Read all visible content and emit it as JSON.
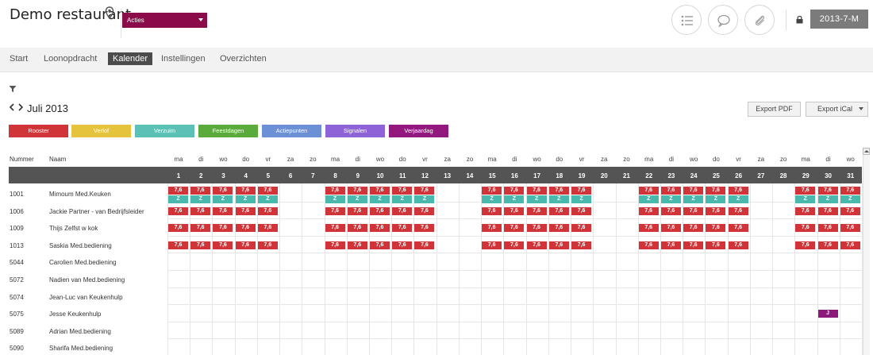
{
  "app": {
    "title": "Demo restaurant",
    "actions_label": "Acties",
    "user": "2013-7-M"
  },
  "header_icons": [
    "list-icon",
    "chat-icon",
    "paperclip-icon"
  ],
  "nav": {
    "items": [
      {
        "label": "Start",
        "active": false
      },
      {
        "label": "Loonopdracht",
        "active": false
      },
      {
        "label": "Kalender",
        "active": true
      },
      {
        "label": "Instellingen",
        "active": false
      },
      {
        "label": "Overzichten",
        "active": false
      }
    ]
  },
  "calendar": {
    "month": "Juli 2013",
    "export_pdf": "Export PDF",
    "export_ical": "Export iCal",
    "legend": [
      {
        "label": "Rooster",
        "color": "#d13438"
      },
      {
        "label": "Verlof",
        "color": "#e6c33d"
      },
      {
        "label": "Verzuim",
        "color": "#5bc0b5"
      },
      {
        "label": "Feestdagen",
        "color": "#5aab3b"
      },
      {
        "label": "Actiepunten",
        "color": "#6c8fd6"
      },
      {
        "label": "Signalen",
        "color": "#8f63d8"
      },
      {
        "label": "Verjaardag",
        "color": "#93197f"
      }
    ],
    "columns": {
      "number": "Nummer",
      "name": "Naam"
    },
    "day_names": [
      "ma",
      "di",
      "wo",
      "do",
      "vr",
      "za",
      "zo",
      "ma",
      "di",
      "wo",
      "do",
      "vr",
      "za",
      "zo",
      "ma",
      "di",
      "wo",
      "do",
      "vr",
      "za",
      "zo",
      "ma",
      "di",
      "wo",
      "do",
      "vr",
      "za",
      "zo",
      "ma",
      "di",
      "wo"
    ],
    "days": [
      "1",
      "2",
      "3",
      "4",
      "5",
      "6",
      "7",
      "8",
      "9",
      "10",
      "11",
      "12",
      "13",
      "14",
      "15",
      "16",
      "17",
      "18",
      "19",
      "20",
      "21",
      "22",
      "23",
      "24",
      "25",
      "26",
      "27",
      "28",
      "29",
      "30",
      "31"
    ],
    "shift_label": "7,6",
    "sick_label": "Z",
    "birthday_label": "J",
    "employees": [
      {
        "number": "1001",
        "name": "Mimoum Med.Keuken",
        "shift_days": [
          1,
          2,
          3,
          4,
          5,
          8,
          9,
          10,
          11,
          12,
          15,
          16,
          17,
          18,
          19,
          22,
          23,
          24,
          25,
          26,
          29,
          30,
          31
        ],
        "sick_days": [
          1,
          2,
          3,
          4,
          5,
          8,
          9,
          10,
          11,
          12,
          15,
          16,
          17,
          18,
          19,
          22,
          23,
          24,
          25,
          26,
          29,
          30,
          31
        ],
        "birthday_days": []
      },
      {
        "number": "1006",
        "name": "Jackie Partner - van Bedrijfsleider",
        "shift_days": [
          1,
          2,
          3,
          4,
          5,
          8,
          9,
          10,
          11,
          12,
          15,
          16,
          17,
          18,
          19,
          22,
          23,
          24,
          25,
          26,
          29,
          30,
          31
        ],
        "sick_days": [],
        "birthday_days": []
      },
      {
        "number": "1009",
        "name": "Thijs Zelfst w kok",
        "shift_days": [
          1,
          2,
          3,
          4,
          5,
          8,
          9,
          10,
          11,
          12,
          15,
          16,
          17,
          18,
          19,
          22,
          23,
          24,
          25,
          26,
          29,
          30,
          31
        ],
        "sick_days": [],
        "birthday_days": []
      },
      {
        "number": "1013",
        "name": "Saskia Med.bediening",
        "shift_days": [
          1,
          2,
          3,
          4,
          5,
          8,
          9,
          10,
          11,
          12,
          15,
          16,
          17,
          18,
          19,
          22,
          23,
          24,
          25,
          26,
          29,
          30,
          31
        ],
        "sick_days": [],
        "birthday_days": []
      },
      {
        "number": "5044",
        "name": "Carolien Med.bediening",
        "shift_days": [],
        "sick_days": [],
        "birthday_days": []
      },
      {
        "number": "5072",
        "name": "Nadien van Med.bediening",
        "shift_days": [],
        "sick_days": [],
        "birthday_days": []
      },
      {
        "number": "5074",
        "name": "Jean-Luc van Keukenhulp",
        "shift_days": [],
        "sick_days": [],
        "birthday_days": []
      },
      {
        "number": "5075",
        "name": "Jesse Keukenhulp",
        "shift_days": [],
        "sick_days": [],
        "birthday_days": [
          30
        ]
      },
      {
        "number": "5089",
        "name": "Adrian Med.bediening",
        "shift_days": [],
        "sick_days": [],
        "birthday_days": []
      },
      {
        "number": "5090",
        "name": "Sharifa Med.bediening",
        "shift_days": [],
        "sick_days": [],
        "birthday_days": []
      }
    ]
  }
}
